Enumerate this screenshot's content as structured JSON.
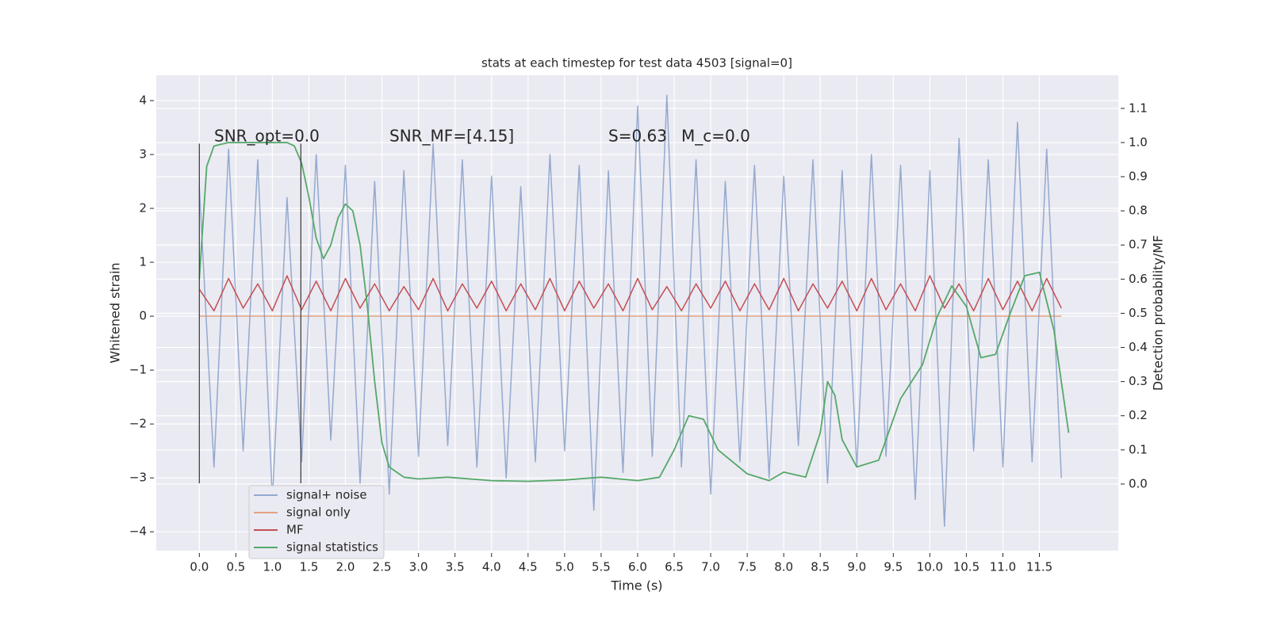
{
  "chart_data": {
    "type": "line",
    "title": "stats at each timestep for test data 4503 [signal=0]",
    "xlabel": "Time (s)",
    "ylabel": "Whitened strain",
    "y2label": "Detection probability/MF",
    "annotations": [
      "SNR_opt=0.0",
      "SNR_MF=[4.15]",
      "S=0.63",
      "M_c=0.0"
    ],
    "vlines": [
      0,
      1.39
    ],
    "x": [
      0,
      0.2,
      0.4,
      0.6,
      0.8,
      1.0,
      1.2,
      1.4,
      1.6,
      1.8,
      2.0,
      2.2,
      2.4,
      2.6,
      2.8,
      3.0,
      3.2,
      3.4,
      3.6,
      3.8,
      4.0,
      4.2,
      4.4,
      4.6,
      4.8,
      5.0,
      5.2,
      5.4,
      5.6,
      5.8,
      6.0,
      6.2,
      6.4,
      6.6,
      6.8,
      7.0,
      7.2,
      7.4,
      7.6,
      7.8,
      8.0,
      8.2,
      8.4,
      8.6,
      8.8,
      9.0,
      9.2,
      9.4,
      9.6,
      9.8,
      10.0,
      10.2,
      10.4,
      10.6,
      10.8,
      11.0,
      11.2,
      11.4,
      11.6,
      11.8
    ],
    "series": [
      {
        "name": "signal+ noise",
        "color": "#4c72b0",
        "values": [
          2.4,
          -2.8,
          3.1,
          -2.5,
          2.9,
          -3.4,
          2.2,
          -2.7,
          3.0,
          -2.3,
          2.8,
          -3.1,
          2.5,
          -3.3,
          2.7,
          -2.6,
          3.2,
          -2.4,
          2.9,
          -2.8,
          2.6,
          -3.0,
          2.4,
          -2.7,
          3.0,
          -2.5,
          2.8,
          -3.6,
          2.7,
          -2.9,
          3.9,
          -2.6,
          4.1,
          -2.8,
          2.9,
          -3.3,
          2.5,
          -2.7,
          2.8,
          -3.0,
          2.6,
          -2.4,
          2.9,
          -3.1,
          2.7,
          -2.8,
          3.0,
          -2.6,
          2.8,
          -3.4,
          2.7,
          -3.9,
          3.3,
          -2.5,
          2.9,
          -2.8,
          3.6,
          -2.7,
          3.1,
          -3.0
        ]
      },
      {
        "name": "signal only",
        "color": "#dd8452",
        "values": [
          0,
          0,
          0,
          0,
          0,
          0,
          0,
          0,
          0,
          0,
          0,
          0,
          0,
          0,
          0,
          0,
          0,
          0,
          0,
          0,
          0,
          0,
          0,
          0,
          0,
          0,
          0,
          0,
          0,
          0,
          0,
          0,
          0,
          0,
          0,
          0,
          0,
          0,
          0,
          0,
          0,
          0,
          0,
          0,
          0,
          0,
          0,
          0,
          0,
          0,
          0,
          0,
          0,
          0,
          0,
          0,
          0,
          0,
          0,
          0
        ]
      },
      {
        "name": "MF",
        "color": "#c44e52",
        "values": [
          0.5,
          0.1,
          0.7,
          0.15,
          0.6,
          0.1,
          0.75,
          0.12,
          0.65,
          0.1,
          0.7,
          0.15,
          0.6,
          0.1,
          0.55,
          0.12,
          0.7,
          0.1,
          0.6,
          0.15,
          0.65,
          0.1,
          0.6,
          0.12,
          0.7,
          0.1,
          0.65,
          0.15,
          0.6,
          0.1,
          0.7,
          0.12,
          0.55,
          0.1,
          0.6,
          0.15,
          0.65,
          0.1,
          0.6,
          0.12,
          0.7,
          0.1,
          0.6,
          0.15,
          0.65,
          0.1,
          0.7,
          0.12,
          0.6,
          0.1,
          0.75,
          0.15,
          0.6,
          0.1,
          0.7,
          0.12,
          0.65,
          0.1,
          0.7,
          0.15
        ]
      },
      {
        "name": "signal statistics",
        "color": "#55a868",
        "axis": "y2",
        "x": [
          0.0,
          0.1,
          0.2,
          0.4,
          0.8,
          1.2,
          1.3,
          1.4,
          1.5,
          1.6,
          1.7,
          1.8,
          1.9,
          2.0,
          2.1,
          2.2,
          2.3,
          2.4,
          2.5,
          2.6,
          2.8,
          3.0,
          3.4,
          4.0,
          4.5,
          5.0,
          5.5,
          6.0,
          6.3,
          6.5,
          6.7,
          6.9,
          7.1,
          7.5,
          7.8,
          8.0,
          8.3,
          8.5,
          8.6,
          8.7,
          8.8,
          9.0,
          9.3,
          9.6,
          9.9,
          10.1,
          10.3,
          10.5,
          10.7,
          10.9,
          11.1,
          11.3,
          11.5,
          11.7,
          11.9
        ],
        "values": [
          0.6,
          0.93,
          0.99,
          1.0,
          1.0,
          1.0,
          0.99,
          0.94,
          0.84,
          0.72,
          0.66,
          0.7,
          0.78,
          0.82,
          0.8,
          0.7,
          0.52,
          0.3,
          0.12,
          0.05,
          0.02,
          0.015,
          0.02,
          0.01,
          0.008,
          0.012,
          0.02,
          0.01,
          0.02,
          0.1,
          0.2,
          0.19,
          0.1,
          0.03,
          0.01,
          0.035,
          0.02,
          0.15,
          0.3,
          0.26,
          0.13,
          0.05,
          0.07,
          0.25,
          0.35,
          0.49,
          0.58,
          0.52,
          0.37,
          0.38,
          0.5,
          0.61,
          0.62,
          0.45,
          0.15
        ]
      }
    ],
    "xlim": [
      -0.59,
      12.58
    ],
    "ylim": [
      -4.35,
      4.47
    ],
    "y2lim": [
      -0.195,
      1.197
    ],
    "xticks": [
      {
        "value": 0,
        "label": "0.0"
      },
      {
        "value": 0.5,
        "label": "0.5"
      },
      {
        "value": 1,
        "label": "1.0"
      },
      {
        "value": 1.5,
        "label": "1.5"
      },
      {
        "value": 2,
        "label": "2.0"
      },
      {
        "value": 2.5,
        "label": "2.5"
      },
      {
        "value": 3,
        "label": "3.0"
      },
      {
        "value": 3.5,
        "label": "3.5"
      },
      {
        "value": 4,
        "label": "4.0"
      },
      {
        "value": 4.5,
        "label": "4.5"
      },
      {
        "value": 5,
        "label": "5.0"
      },
      {
        "value": 5.5,
        "label": "5.5"
      },
      {
        "value": 6,
        "label": "6.0"
      },
      {
        "value": 6.5,
        "label": "6.5"
      },
      {
        "value": 7,
        "label": "7.0"
      },
      {
        "value": 7.5,
        "label": "7.5"
      },
      {
        "value": 8,
        "label": "8.0"
      },
      {
        "value": 8.5,
        "label": "8.5"
      },
      {
        "value": 9,
        "label": "9.0"
      },
      {
        "value": 9.5,
        "label": "9.5"
      },
      {
        "value": 10,
        "label": "10.0"
      },
      {
        "value": 10.5,
        "label": "10.5"
      },
      {
        "value": 11,
        "label": "11.0"
      },
      {
        "value": 11.5,
        "label": "11.5"
      }
    ],
    "yticks": [
      {
        "value": -4,
        "label": "−4"
      },
      {
        "value": -3,
        "label": "−3"
      },
      {
        "value": -2,
        "label": "−2"
      },
      {
        "value": -1,
        "label": "−1"
      },
      0,
      1,
      2,
      3,
      4
    ],
    "y2ticks": [
      {
        "value": 0,
        "label": "0.0"
      },
      {
        "value": 0.1,
        "label": "0.1"
      },
      {
        "value": 0.2,
        "label": "0.2"
      },
      {
        "value": 0.3,
        "label": "0.3"
      },
      {
        "value": 0.4,
        "label": "0.4"
      },
      {
        "value": 0.5,
        "label": "0.5"
      },
      {
        "value": 0.6,
        "label": "0.6"
      },
      {
        "value": 0.7,
        "label": "0.7"
      },
      {
        "value": 0.8,
        "label": "0.8"
      },
      {
        "value": 0.9,
        "label": "0.9"
      },
      {
        "value": 1.0,
        "label": "1.0"
      },
      {
        "value": 1.1,
        "label": "1.1"
      }
    ],
    "grid": true,
    "legend": "lower left"
  }
}
